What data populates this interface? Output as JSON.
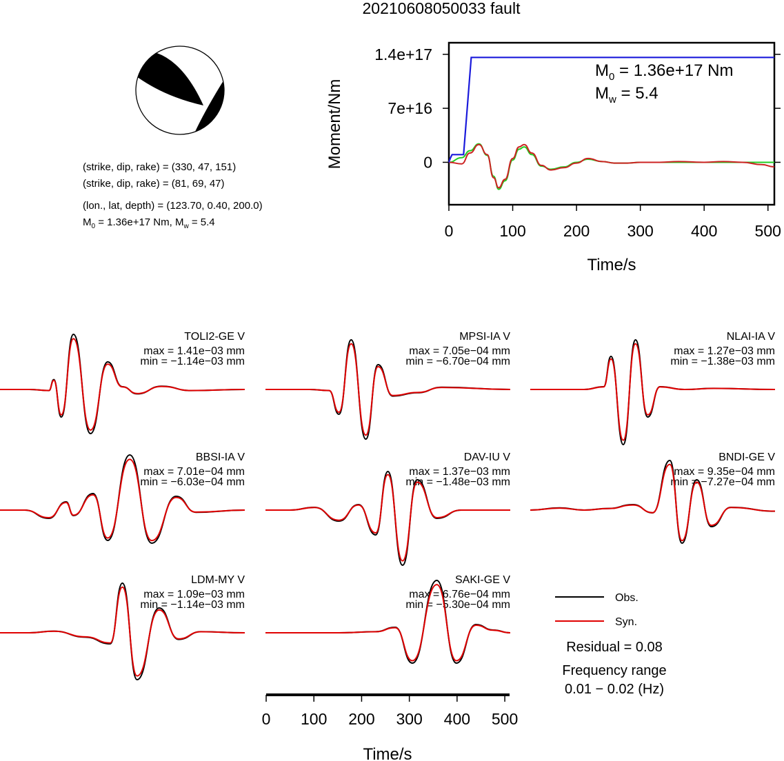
{
  "title": "20210608050033 fault",
  "mechanism": {
    "line1": "(strike, dip, rake) = (330, 47, 151)",
    "line2": "(strike, dip, rake) = (81, 69, 47)",
    "line3": "(lon., lat, depth) = (123.70, 0.40, 200.0)",
    "m0_label": "M",
    "m0_sub": "0",
    "m0_rest": " = 1.36e+17 Nm, M",
    "mw_sub": "w",
    "mw_rest": " = 5.4"
  },
  "moment_panel": {
    "ylabel": "Moment/Nm",
    "xlabel": "Time/s",
    "m0_prefix": "M",
    "m0_sub": "0",
    "m0_value": " = 1.36e+17 Nm",
    "mw_prefix": "M",
    "mw_sub": "w",
    "mw_value": " = 5.4"
  },
  "legend": {
    "obs": "Obs.",
    "syn": "Syn.",
    "residual": "Residual = 0.08",
    "freq_title": "Frequency range",
    "freq_value": "0.01 − 0.02 (Hz)"
  },
  "waveform_axis": {
    "xlabel": "Time/s"
  },
  "stations": [
    {
      "name": "TOLI2-GE V",
      "max": "max = 1.41e−03 mm",
      "min": "min = −1.14e−03 mm"
    },
    {
      "name": "MPSI-IA V",
      "max": "max = 7.05e−04 mm",
      "min": "min = −6.70e−04 mm"
    },
    {
      "name": "NLAI-IA V",
      "max": "max = 1.27e−03 mm",
      "min": "min = −1.38e−03 mm"
    },
    {
      "name": "BBSI-IA V",
      "max": "max = 7.01e−04 mm",
      "min": "min = −6.03e−04 mm"
    },
    {
      "name": "DAV-IU V",
      "max": "max = 1.37e−03 mm",
      "min": "min = −1.48e−03 mm"
    },
    {
      "name": "BNDI-GE V",
      "max": "max = 9.35e−04 mm",
      "min": "min = −7.27e−04 mm"
    },
    {
      "name": "LDM-MY V",
      "max": "max = 1.09e−03 mm",
      "min": "min = −1.14e−03 mm"
    },
    {
      "name": "SAKI-GE V",
      "max": "max = 6.76e−04 mm",
      "min": "min = −5.30e−04 mm"
    }
  ],
  "colors": {
    "obs": "#000000",
    "syn": "#e00000",
    "moment_rate_green": "#22cc22",
    "moment_rate_red": "#cc2222",
    "cumulative_blue": "#1a1adb"
  },
  "chart_data": [
    {
      "type": "line",
      "xlabel": "Time/s",
      "ylabel": "Moment/Nm",
      "xlim": [
        0,
        510
      ],
      "ylim": [
        -5.5e+16,
        1.55e+17
      ],
      "xticks": [
        0,
        100,
        200,
        300,
        400,
        500
      ],
      "yticks": [
        {
          "value": 0,
          "label": "0"
        },
        {
          "value": 7e+16,
          "label": "7e+16"
        },
        {
          "value": 1.4e+17,
          "label": "1.4e+17"
        }
      ],
      "series": [
        {
          "role": "cumulative",
          "color": "#1a1adb",
          "x": [
            0,
            2,
            5,
            20,
            23,
            35,
            510
          ],
          "y": [
            0,
            5000000000000000.0,
            1e+16,
            1e+16,
            1e+16,
            1.36e+17,
            1.36e+17
          ]
        },
        {
          "role": "rate_a",
          "color": "#22cc22",
          "x": [
            0,
            20,
            33,
            47,
            60,
            70,
            78,
            88,
            100,
            110,
            118,
            130,
            145,
            160,
            180,
            200,
            218,
            240,
            260,
            280,
            300,
            330,
            360,
            400,
            450,
            510
          ],
          "y": [
            0,
            6000000000000000.0,
            1.5e+16,
            2.4e+16,
            9000000000000000.0,
            -1.8e+16,
            -3.5e+16,
            -2.4e+16,
            3000000000000000.0,
            1.7e+16,
            2e+16,
            1e+16,
            -5000000000000000.0,
            -9000000000000000.0,
            -6000000000000000.0,
            0,
            4000000000000000.0,
            1000000000000000.0,
            -1000000000000000.0,
            -1000000000000000.0,
            0,
            0,
            0,
            0,
            0,
            0
          ]
        },
        {
          "role": "rate_b",
          "color": "#cc2222",
          "x": [
            0,
            20,
            33,
            47,
            60,
            70,
            78,
            88,
            100,
            110,
            118,
            130,
            145,
            160,
            180,
            200,
            218,
            240,
            260,
            280,
            300,
            330,
            360,
            400,
            430,
            460,
            490,
            510
          ],
          "y": [
            0,
            -2000000000000000.0,
            1.2e+16,
            2.3e+16,
            1e+16,
            -2e+16,
            -3.3e+16,
            -2.2e+16,
            5000000000000000.0,
            2e+16,
            2.3e+16,
            1.2e+16,
            -4000000000000000.0,
            -1e+16,
            -7000000000000000.0,
            -1000000000000000.0,
            5000000000000000.0,
            1000000000000000.0,
            -1000000000000000.0,
            -1000000000000000.0,
            0,
            0,
            1000000000000000.0,
            0,
            1000000000000000.0,
            0,
            -3000000000000000.0,
            -6000000000000000.0
          ]
        }
      ]
    },
    {
      "type": "line",
      "xlabel": "Time/s",
      "xlim": [
        0,
        510
      ],
      "xticks": [
        0,
        100,
        200,
        300,
        400,
        500
      ],
      "series_names": [
        "Obs.",
        "Syn."
      ]
    }
  ]
}
